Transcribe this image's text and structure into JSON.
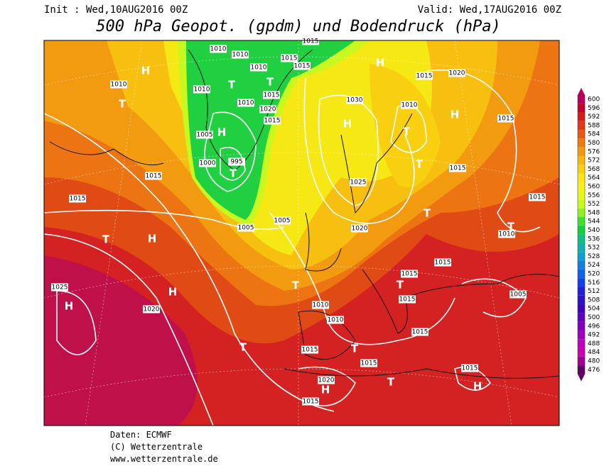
{
  "header": {
    "init": "Init : Wed,10AUG2016 00Z",
    "valid": "Valid: Wed,17AUG2016 00Z",
    "title": "500 hPa Geopot. (gpdm) und Bodendruck (hPa)"
  },
  "colorbar": {
    "levels": [
      "600",
      "596",
      "592",
      "588",
      "584",
      "580",
      "576",
      "572",
      "568",
      "564",
      "560",
      "556",
      "552",
      "548",
      "544",
      "540",
      "536",
      "532",
      "528",
      "524",
      "520",
      "516",
      "512",
      "508",
      "504",
      "500",
      "496",
      "492",
      "488",
      "484",
      "480",
      "476"
    ],
    "colors": [
      "#b8005a",
      "#c8002e",
      "#d81a1a",
      "#e23a14",
      "#e85a10",
      "#ee7a10",
      "#f29a10",
      "#f6b810",
      "#f8d010",
      "#fae612",
      "#f4f020",
      "#e6f818",
      "#c8f820",
      "#90f020",
      "#40e030",
      "#10d040",
      "#10c080",
      "#10b0b0",
      "#10a0d0",
      "#1080e0",
      "#1060f0",
      "#1040f0",
      "#2020e0",
      "#3010d0",
      "#4000c0",
      "#6000c0",
      "#8000c0",
      "#a000c0",
      "#c000c0",
      "#d000b0",
      "#a00090",
      "#600060"
    ]
  },
  "map": {
    "isobar_labels": [
      "1010",
      "1010",
      "1015",
      "1015",
      "1015",
      "1010",
      "1015",
      "1020",
      "1010",
      "1010",
      "1015",
      "1010",
      "1030",
      "1010",
      "1020",
      "1015",
      "1015",
      "1005",
      "1000",
      "995",
      "1015",
      "1015",
      "1025",
      "1015",
      "1015",
      "1005",
      "1005",
      "1020",
      "1010",
      "1015",
      "1015",
      "1025",
      "1015",
      "1005",
      "1010",
      "1020",
      "1010",
      "1015",
      "1015",
      "1015",
      "1015",
      "1020",
      "1015"
    ],
    "centers": [
      "H",
      "T",
      "H",
      "T",
      "T",
      "H",
      "H",
      "H",
      "T",
      "T",
      "T",
      "T",
      "T",
      "H",
      "T",
      "T",
      "H",
      "H",
      "T",
      "T",
      "T",
      "T",
      "H",
      "H"
    ]
  },
  "footer": {
    "source": "Daten: ECMWF",
    "copyright": "(C) Wetterzentrale",
    "url": "www.wetterzentrale.de"
  }
}
